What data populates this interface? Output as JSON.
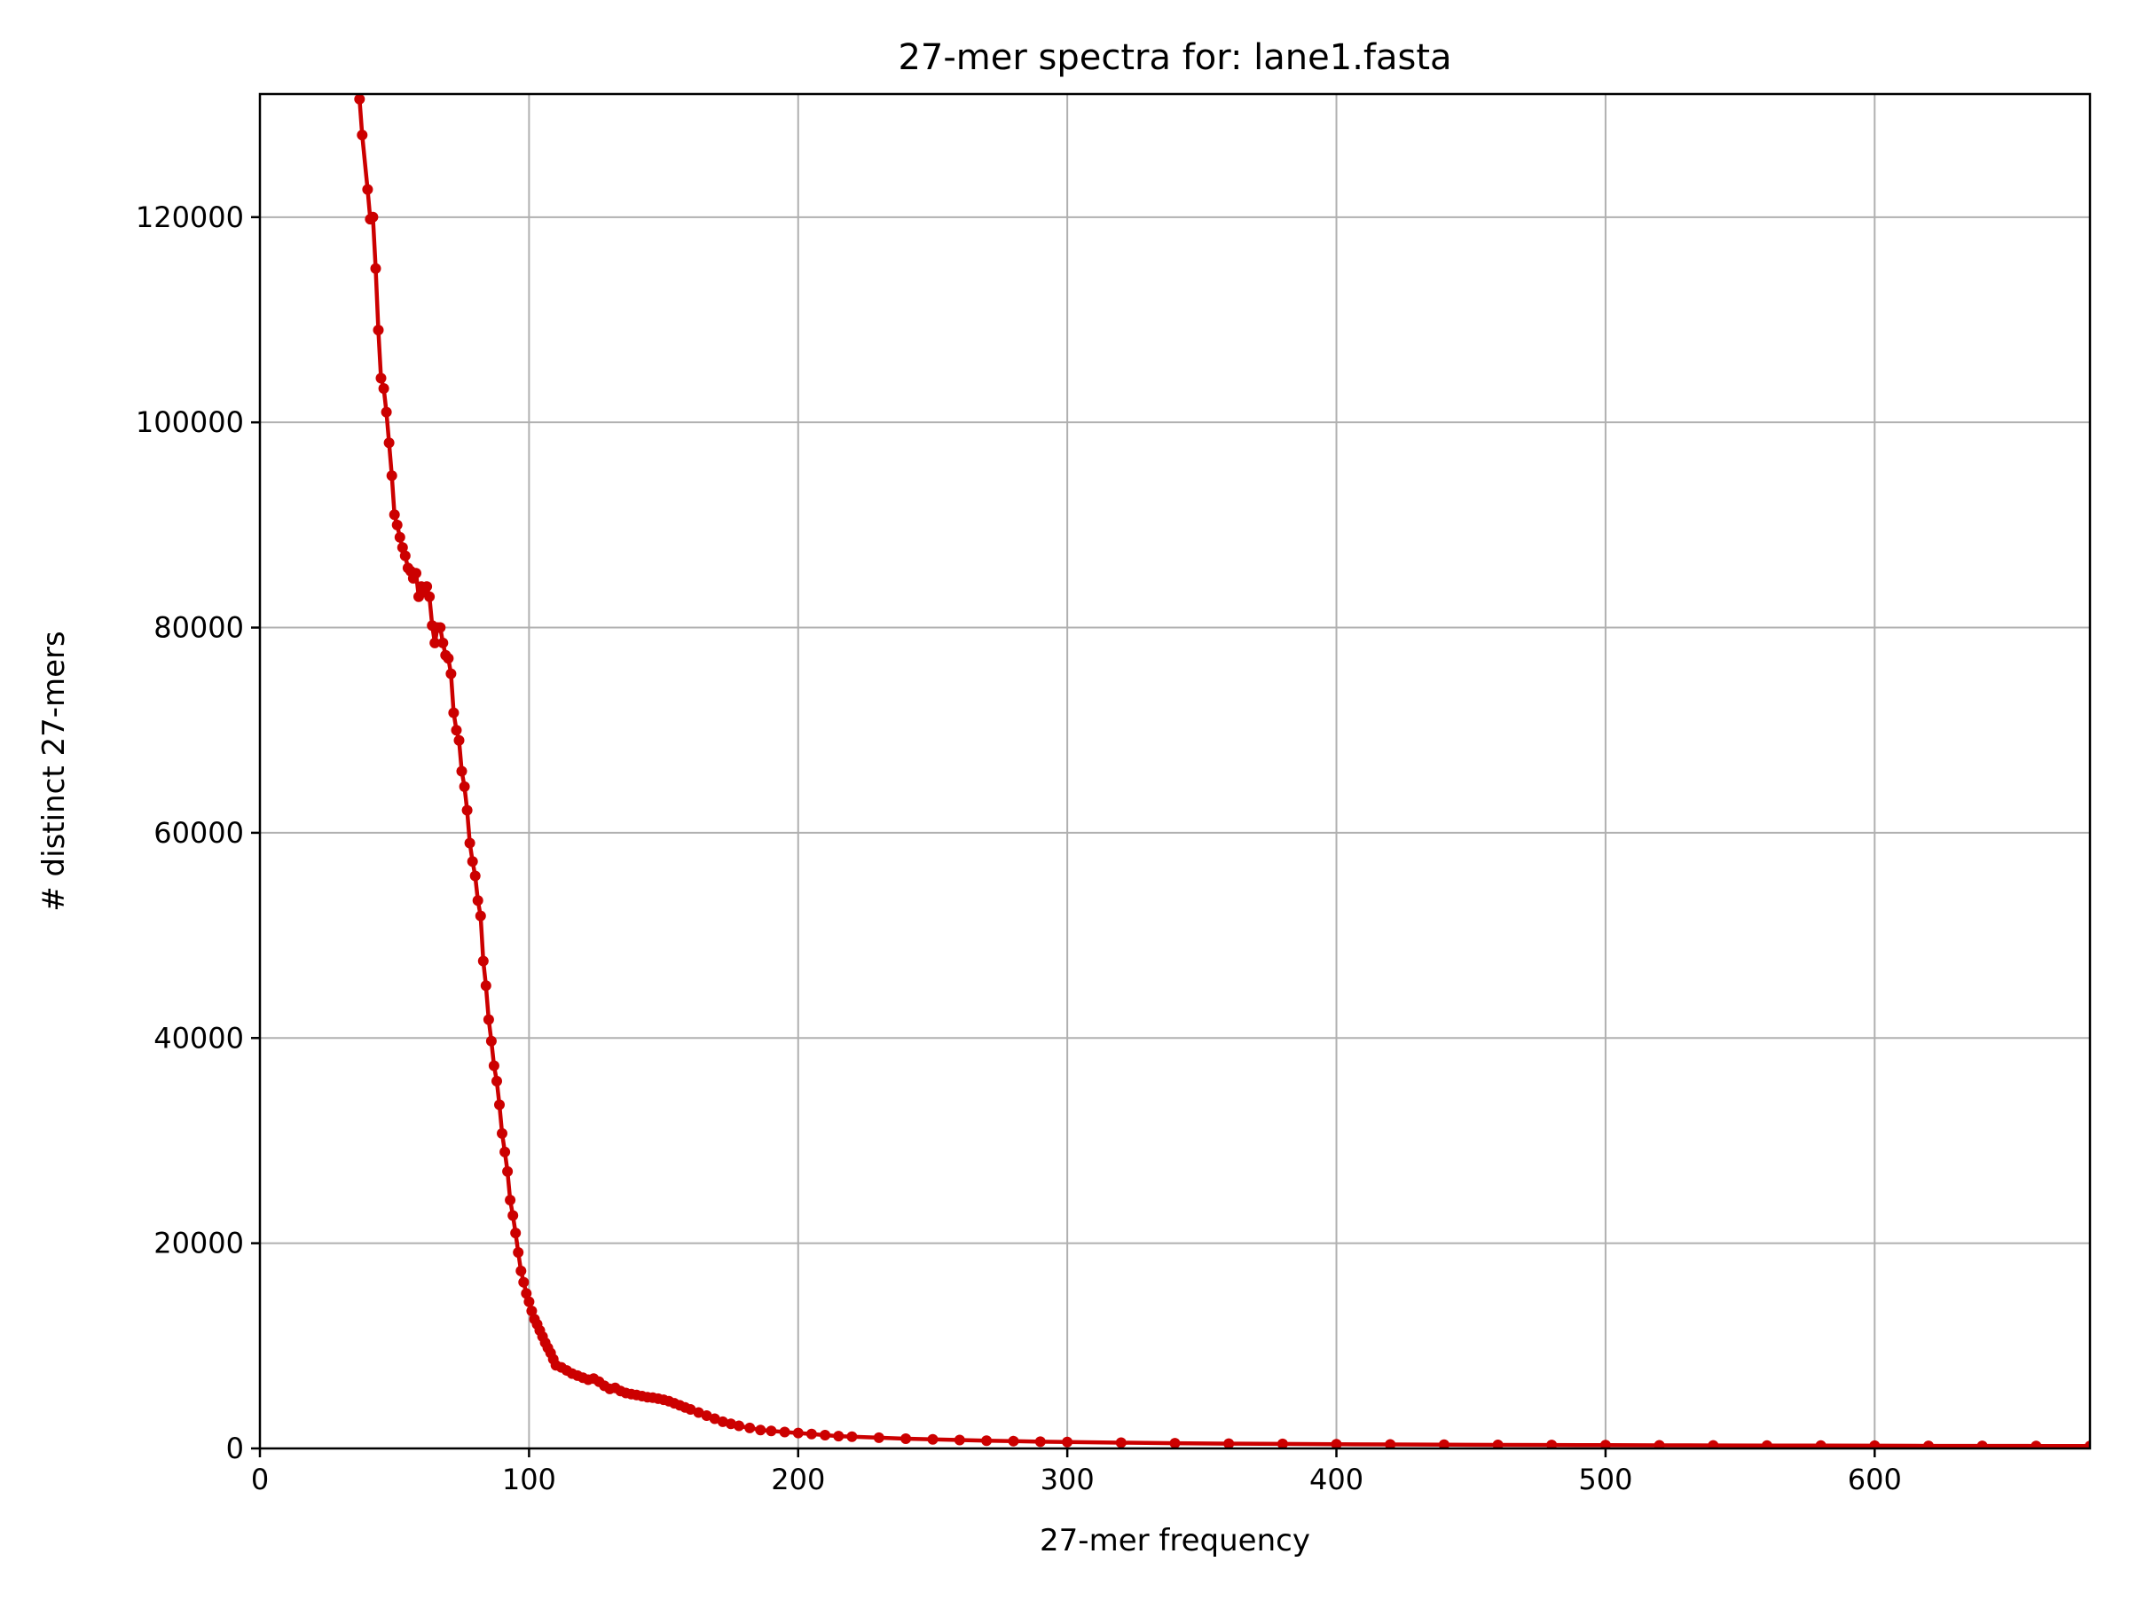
{
  "chart_data": {
    "type": "line",
    "title": "27-mer spectra for: lane1.fasta",
    "xlabel": "27-mer frequency",
    "ylabel": "# distinct 27-mers",
    "xlim": [
      0,
      680
    ],
    "ylim": [
      0,
      132000
    ],
    "xticks": [
      0,
      100,
      200,
      300,
      400,
      500,
      600
    ],
    "xtick_labels": [
      "0",
      "100",
      "200",
      "300",
      "400",
      "500",
      "600"
    ],
    "yticks": [
      0,
      20000,
      40000,
      60000,
      80000,
      100000,
      120000
    ],
    "ytick_labels": [
      "0",
      "20000",
      "40000",
      "60000",
      "80000",
      "100000",
      "120000"
    ],
    "grid": true,
    "line_color": "#cc0000",
    "marker": "circle",
    "series": [
      {
        "points": [
          [
            37,
            131500
          ],
          [
            38,
            128000
          ],
          [
            40,
            122700
          ],
          [
            41,
            119800
          ],
          [
            42,
            120000
          ],
          [
            43,
            115000
          ],
          [
            44,
            109000
          ],
          [
            45,
            104300
          ],
          [
            46,
            103300
          ],
          [
            47,
            101000
          ],
          [
            48,
            98000
          ],
          [
            49,
            94800
          ],
          [
            50,
            91000
          ],
          [
            51,
            90000
          ],
          [
            52,
            88800
          ],
          [
            53,
            87800
          ],
          [
            54,
            87000
          ],
          [
            55,
            85800
          ],
          [
            56,
            85500
          ],
          [
            57,
            84800
          ],
          [
            58,
            85300
          ],
          [
            59,
            83000
          ],
          [
            60,
            84000
          ],
          [
            61,
            83500
          ],
          [
            62,
            84000
          ],
          [
            63,
            83000
          ],
          [
            64,
            80200
          ],
          [
            65,
            78500
          ],
          [
            66,
            80000
          ],
          [
            67,
            80000
          ],
          [
            68,
            78500
          ],
          [
            69,
            77300
          ],
          [
            70,
            77000
          ],
          [
            71,
            75500
          ],
          [
            72,
            71700
          ],
          [
            73,
            70000
          ],
          [
            74,
            69000
          ],
          [
            75,
            66000
          ],
          [
            76,
            64500
          ],
          [
            77,
            62200
          ],
          [
            78,
            59000
          ],
          [
            79,
            57200
          ],
          [
            80,
            55800
          ],
          [
            81,
            53400
          ],
          [
            82,
            51900
          ],
          [
            83,
            47500
          ],
          [
            84,
            45100
          ],
          [
            85,
            41800
          ],
          [
            86,
            39700
          ],
          [
            87,
            37300
          ],
          [
            88,
            35800
          ],
          [
            89,
            33500
          ],
          [
            90,
            30700
          ],
          [
            91,
            28900
          ],
          [
            92,
            27000
          ],
          [
            93,
            24200
          ],
          [
            94,
            22700
          ],
          [
            95,
            21000
          ],
          [
            96,
            19100
          ],
          [
            97,
            17300
          ],
          [
            98,
            16200
          ],
          [
            99,
            15100
          ],
          [
            100,
            14300
          ],
          [
            101,
            13400
          ],
          [
            102,
            12600
          ],
          [
            103,
            12100
          ],
          [
            104,
            11500
          ],
          [
            105,
            10900
          ],
          [
            106,
            10300
          ],
          [
            107,
            9800
          ],
          [
            108,
            9300
          ],
          [
            109,
            8700
          ],
          [
            110,
            8100
          ],
          [
            112,
            7900
          ],
          [
            114,
            7600
          ],
          [
            116,
            7300
          ],
          [
            118,
            7100
          ],
          [
            120,
            6900
          ],
          [
            122,
            6700
          ],
          [
            124,
            6800
          ],
          [
            126,
            6500
          ],
          [
            128,
            6100
          ],
          [
            130,
            5800
          ],
          [
            132,
            5900
          ],
          [
            134,
            5600
          ],
          [
            136,
            5400
          ],
          [
            138,
            5300
          ],
          [
            140,
            5200
          ],
          [
            142,
            5100
          ],
          [
            144,
            5000
          ],
          [
            146,
            4950
          ],
          [
            148,
            4850
          ],
          [
            150,
            4750
          ],
          [
            152,
            4600
          ],
          [
            154,
            4400
          ],
          [
            156,
            4200
          ],
          [
            158,
            4000
          ],
          [
            160,
            3800
          ],
          [
            163,
            3500
          ],
          [
            166,
            3200
          ],
          [
            169,
            2900
          ],
          [
            172,
            2600
          ],
          [
            175,
            2400
          ],
          [
            178,
            2200
          ],
          [
            182,
            2000
          ],
          [
            186,
            1800
          ],
          [
            190,
            1700
          ],
          [
            195,
            1600
          ],
          [
            200,
            1500
          ],
          [
            205,
            1400
          ],
          [
            210,
            1300
          ],
          [
            215,
            1200
          ],
          [
            220,
            1150
          ],
          [
            230,
            1050
          ],
          [
            240,
            950
          ],
          [
            250,
            880
          ],
          [
            260,
            820
          ],
          [
            270,
            760
          ],
          [
            280,
            710
          ],
          [
            290,
            660
          ],
          [
            300,
            620
          ],
          [
            320,
            560
          ],
          [
            340,
            510
          ],
          [
            360,
            470
          ],
          [
            380,
            440
          ],
          [
            400,
            410
          ],
          [
            420,
            390
          ],
          [
            440,
            370
          ],
          [
            460,
            350
          ],
          [
            480,
            335
          ],
          [
            500,
            320
          ],
          [
            520,
            305
          ],
          [
            540,
            295
          ],
          [
            560,
            285
          ],
          [
            580,
            275
          ],
          [
            600,
            265
          ],
          [
            620,
            255
          ],
          [
            640,
            250
          ],
          [
            660,
            245
          ],
          [
            680,
            240
          ]
        ]
      }
    ]
  }
}
